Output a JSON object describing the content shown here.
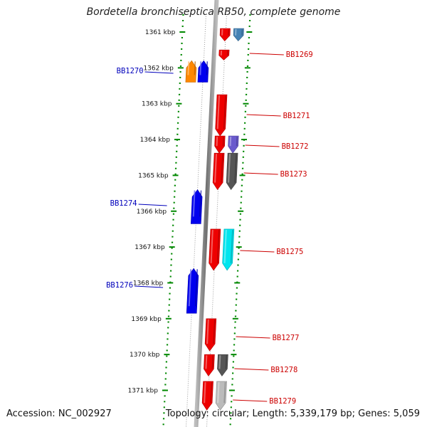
{
  "title": "Bordetella bronchiseptica RB50, complete genome",
  "footer": {
    "accession": "Accession: NC_002927",
    "topology": "Topology: circular; Length: 5,339,179 bp; Genes: 5,059"
  },
  "scale": {
    "unit": "kbp",
    "ticks": [
      "1361 kbp",
      "1362 kbp",
      "1363 kbp",
      "1364 kbp",
      "1365 kbp",
      "1366 kbp",
      "1367 kbp",
      "1368 kbp",
      "1369 kbp",
      "1370 kbp",
      "1371 kbp"
    ]
  },
  "genes": [
    {
      "label": "",
      "strand": "+",
      "lane": 1,
      "start_kbp": 1360.9,
      "end_kbp": 1361.25,
      "color": "#ee0000"
    },
    {
      "label": "",
      "strand": "+",
      "lane": 2,
      "start_kbp": 1360.9,
      "end_kbp": 1361.25,
      "color": "#4682b4"
    },
    {
      "label": "BB1269",
      "strand": "+",
      "lane": 1,
      "start_kbp": 1361.5,
      "end_kbp": 1361.78,
      "color": "#ee0000"
    },
    {
      "label": "BB1270",
      "strand": "-",
      "lane": 2,
      "start_kbp": 1361.8,
      "end_kbp": 1362.4,
      "color": "#ff8800"
    },
    {
      "label": "",
      "strand": "-",
      "lane": 1,
      "start_kbp": 1361.8,
      "end_kbp": 1362.4,
      "color": "#0000ee"
    },
    {
      "label": "BB1271",
      "strand": "+",
      "lane": 1,
      "start_kbp": 1362.75,
      "end_kbp": 1363.9,
      "color": "#ee0000"
    },
    {
      "label": "BB1272",
      "strand": "+",
      "lane": 1,
      "start_kbp": 1363.9,
      "end_kbp": 1364.38,
      "color": "#ee0000"
    },
    {
      "label": "",
      "strand": "+",
      "lane": 2,
      "start_kbp": 1363.9,
      "end_kbp": 1364.38,
      "color": "#6a5acd"
    },
    {
      "label": "BB1273",
      "strand": "+",
      "lane": 1,
      "start_kbp": 1364.38,
      "end_kbp": 1365.4,
      "color": "#ee0000"
    },
    {
      "label": "",
      "strand": "+",
      "lane": 2,
      "start_kbp": 1364.38,
      "end_kbp": 1365.4,
      "color": "#555555"
    },
    {
      "label": "BB1274",
      "strand": "-",
      "lane": 1,
      "start_kbp": 1365.4,
      "end_kbp": 1366.35,
      "color": "#0000ee"
    },
    {
      "label": "BB1275",
      "strand": "+",
      "lane": 1,
      "start_kbp": 1366.5,
      "end_kbp": 1367.65,
      "color": "#ee0000"
    },
    {
      "label": "",
      "strand": "+",
      "lane": 2,
      "start_kbp": 1366.5,
      "end_kbp": 1367.65,
      "color": "#00e5ee"
    },
    {
      "label": "BB1276",
      "strand": "-",
      "lane": 1,
      "start_kbp": 1367.6,
      "end_kbp": 1368.85,
      "color": "#0000ee"
    },
    {
      "label": "BB1277",
      "strand": "+",
      "lane": 1,
      "start_kbp": 1369.0,
      "end_kbp": 1369.9,
      "color": "#ee0000"
    },
    {
      "label": "BB1278",
      "strand": "+",
      "lane": 1,
      "start_kbp": 1370.0,
      "end_kbp": 1370.6,
      "color": "#ee0000"
    },
    {
      "label": "",
      "strand": "+",
      "lane": 2,
      "start_kbp": 1370.0,
      "end_kbp": 1370.6,
      "color": "#555555"
    },
    {
      "label": "BB1279",
      "strand": "+",
      "lane": 1,
      "start_kbp": 1370.75,
      "end_kbp": 1371.55,
      "color": "#ee0000"
    },
    {
      "label": "",
      "strand": "+",
      "lane": 2,
      "start_kbp": 1370.75,
      "end_kbp": 1371.55,
      "color": "#bbbbbb"
    }
  ],
  "colors": {
    "forward_label": "#cc0000",
    "reverse_label": "#0000bb",
    "scale_ticks": "#008800",
    "backbone": "#808080"
  }
}
